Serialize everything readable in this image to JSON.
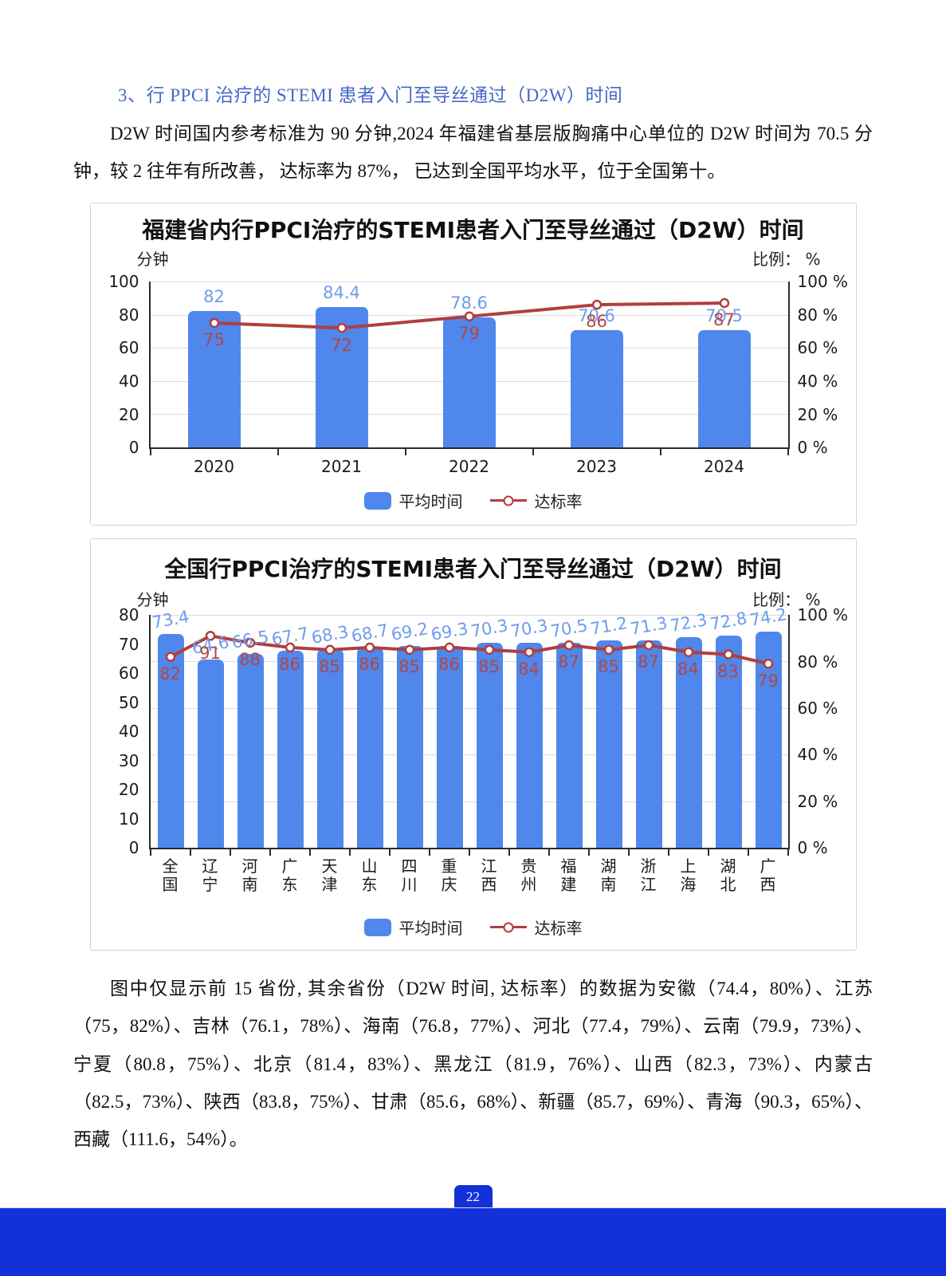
{
  "page": {
    "heading": "3、行 PPCI 治疗的 STEMI 患者入门至导丝通过（D2W）时间",
    "paragraph_top": "D2W 时间国内参考标准为 90 分钟,2024 年福建省基层版胸痛中心单位的 D2W 时间为 70.5 分钟，较 2 往年有所改善， 达标率为 87%， 已达到全国平均水平，位于全国第十。",
    "paragraph_bottom": "图中仅显示前 15 省份, 其余省份（D2W 时间, 达标率）的数据为安徽（74.4，80%）、江苏（75，82%）、吉林（76.1，78%）、海南（76.8，77%）、河北（77.4，79%）、云南（79.9，73%）、宁夏（80.8，75%）、北京（81.4，83%）、黑龙江（81.9，76%）、山西（82.3，73%）、内蒙古（82.5，73%）、陕西（83.8，75%）、甘肃（85.6，68%）、新疆（85.7，69%）、青海（90.3，65%）、西藏（111.6，54%）。",
    "page_number": "22"
  },
  "colors": {
    "heading_blue": "#4468C5",
    "bar_blue": "#4F87EC",
    "bar_label_blue": "#6D9CEE",
    "line_red": "#B23E3E",
    "line_label_red": "#B04749",
    "footer_blue": "#1331D9"
  },
  "chart_data": [
    {
      "type": "bar",
      "subtype": "bar+line combo, dual y-axis",
      "title": "福建省内行PPCI治疗的STEMI患者入门至导丝通过（D2W）时间",
      "categories": [
        "2020",
        "2021",
        "2022",
        "2023",
        "2024"
      ],
      "series": [
        {
          "name": "平均时间",
          "type": "bar",
          "axis": "left",
          "values": [
            82,
            84.4,
            78.6,
            70.6,
            70.5
          ]
        },
        {
          "name": "达标率",
          "type": "line",
          "axis": "right",
          "values": [
            75,
            72,
            79,
            86,
            87
          ]
        }
      ],
      "left_axis": {
        "label": "分钟",
        "min": 0,
        "max": 100,
        "ticks": [
          0,
          20,
          40,
          60,
          80,
          100
        ]
      },
      "right_axis": {
        "label": "比例： %",
        "min": 0,
        "max": 100,
        "tick_labels": [
          "0 %",
          "20 %",
          "40 %",
          "60 %",
          "80 %",
          "100 %"
        ]
      },
      "grid": true,
      "legend_position": "bottom"
    },
    {
      "type": "bar",
      "subtype": "bar+line combo, dual y-axis",
      "title": "全国行PPCI治疗的STEMI患者入门至导丝通过（D2W）时间",
      "categories": [
        "全国",
        "辽宁",
        "河南",
        "广东",
        "天津",
        "山东",
        "四川",
        "重庆",
        "江西",
        "贵州",
        "福建",
        "湖南",
        "浙江",
        "上海",
        "湖北",
        "广西"
      ],
      "series": [
        {
          "name": "平均时间",
          "type": "bar",
          "axis": "left",
          "values": [
            73.4,
            64.6,
            66.5,
            67.7,
            68.3,
            68.7,
            69.2,
            69.3,
            70.3,
            70.3,
            70.5,
            71.2,
            71.3,
            72.3,
            72.8,
            74.2
          ]
        },
        {
          "name": "达标率",
          "type": "line",
          "axis": "right",
          "values": [
            82,
            91,
            88,
            86,
            85,
            86,
            85,
            86,
            85,
            84,
            87,
            85,
            87,
            84,
            83,
            79
          ]
        }
      ],
      "left_axis": {
        "label": "分钟",
        "min": 0,
        "max": 80,
        "ticks": [
          0,
          10,
          20,
          30,
          40,
          50,
          60,
          70,
          80
        ]
      },
      "right_axis": {
        "label": "比例： %",
        "min": 0,
        "max": 100,
        "tick_labels": [
          "0 %",
          "20 %",
          "40 %",
          "60 %",
          "80 %",
          "100 %"
        ]
      },
      "grid": true,
      "legend_position": "bottom"
    }
  ]
}
